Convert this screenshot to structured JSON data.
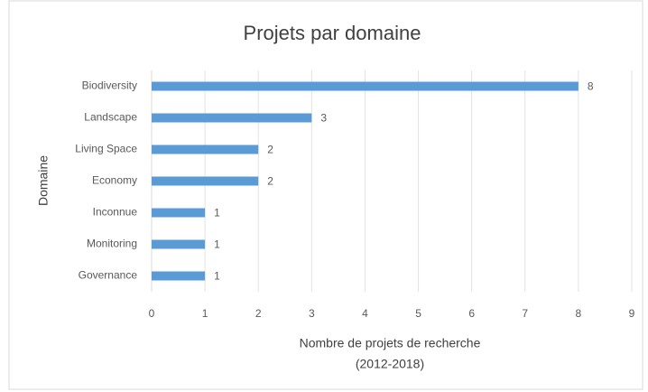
{
  "chart_data": {
    "type": "bar",
    "orientation": "horizontal",
    "title": "Projets par domaine",
    "xlabel": [
      "Nombre de projets de recherche",
      "(2012-2018)"
    ],
    "ylabel": "Domaine",
    "categories": [
      "Biodiversity",
      "Landscape",
      "Living Space",
      "Economy",
      "Inconnue",
      "Monitoring",
      "Governance"
    ],
    "values": [
      8,
      3,
      2,
      2,
      1,
      1,
      1
    ],
    "color": "#5b9bd5",
    "xlim": [
      0,
      9
    ],
    "xticks": [
      0,
      1,
      2,
      3,
      4,
      5,
      6,
      7,
      8,
      9
    ],
    "grid": true
  }
}
